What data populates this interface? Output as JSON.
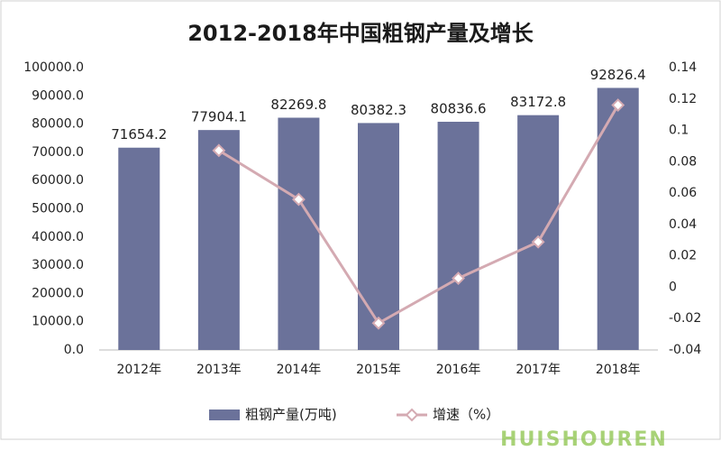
{
  "chart_data": {
    "type": "bar_line",
    "title": "2012-2018年中国粗钢产量及增长",
    "categories": [
      "2012年",
      "2013年",
      "2014年",
      "2015年",
      "2016年",
      "2017年",
      "2018年"
    ],
    "series": [
      {
        "name": "粗钢产量(万吨)",
        "color": "#6b729a",
        "type": "bar",
        "values": [
          71654.2,
          77904.1,
          82269.8,
          80382.3,
          80836.6,
          83172.8,
          92826.4
        ]
      },
      {
        "name": "增速（%）",
        "color": "#d4aab2",
        "type": "line",
        "axis": "y2",
        "values": [
          null,
          0.0872,
          0.056,
          -0.0229,
          0.0057,
          0.0289,
          0.1161
        ]
      }
    ],
    "ylim": [
      0,
      100000
    ],
    "yticks": [
      {
        "value": 0,
        "label": "0.0"
      },
      {
        "value": 10000,
        "label": "10000.0"
      },
      {
        "value": 20000,
        "label": "20000.0"
      },
      {
        "value": 30000,
        "label": "30000.0"
      },
      {
        "value": 40000,
        "label": "40000.0"
      },
      {
        "value": 50000,
        "label": "50000.0"
      },
      {
        "value": 60000,
        "label": "60000.0"
      },
      {
        "value": 70000,
        "label": "70000.0"
      },
      {
        "value": 80000,
        "label": "80000.0"
      },
      {
        "value": 90000,
        "label": "90000.0"
      },
      {
        "value": 100000,
        "label": "100000.0"
      }
    ],
    "y2lim": [
      -0.04,
      0.14
    ],
    "y2ticks": [
      -0.04,
      -0.02,
      0,
      0.02,
      0.04,
      0.06,
      0.08,
      0.1,
      0.12,
      0.14
    ],
    "grid": false,
    "legend": "bottom",
    "watermark": "HUISHOUREN"
  }
}
